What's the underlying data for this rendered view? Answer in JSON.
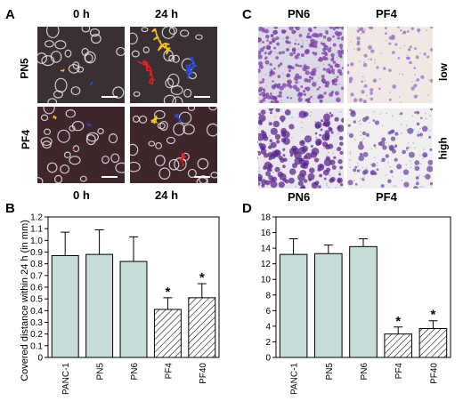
{
  "panels": {
    "A": {
      "letter": "A",
      "col_labels": [
        "0 h",
        "24 h"
      ],
      "row_labels": [
        "PN5",
        "PF4"
      ],
      "bottom_labels": [
        "0 h",
        "24 h"
      ]
    },
    "B": {
      "letter": "B",
      "ylabel": "Covered distance within 24 h (in mm)"
    },
    "C": {
      "letter": "C",
      "top_labels": [
        "PN6",
        "PF4"
      ],
      "bottom_labels": [
        "PN6",
        "PF4"
      ],
      "left_labels": [
        "low",
        "high"
      ],
      "right_labels": [
        "low",
        "high"
      ]
    },
    "D": {
      "letter": "D",
      "ylabel": ""
    }
  },
  "chart_data": [
    {
      "type": "bar",
      "panel": "B",
      "categories": [
        "PANC-1",
        "PN5",
        "PN6",
        "PF4",
        "PF40"
      ],
      "values": [
        0.87,
        0.88,
        0.82,
        0.41,
        0.51
      ],
      "errors": [
        0.2,
        0.21,
        0.21,
        0.1,
        0.12
      ],
      "significant": [
        false,
        false,
        false,
        true,
        true
      ],
      "hatched": [
        false,
        false,
        false,
        true,
        true
      ],
      "ylabel": "Covered distance within 24 h (in mm)",
      "ylim": [
        0,
        1.2
      ],
      "yticks": [
        "0",
        "0.1",
        "0.2",
        "0.3",
        "0.4",
        "0.5",
        "0.6",
        "0.7",
        "0.8",
        "0.9",
        "1.0",
        "1.1",
        "1.2"
      ],
      "sig_marker": "*",
      "bar_color": "#c5dcd8"
    },
    {
      "type": "bar",
      "panel": "D",
      "categories": [
        "PANC-1",
        "PN5",
        "PN6",
        "PF4",
        "PF40"
      ],
      "values": [
        13.2,
        13.3,
        14.2,
        3.0,
        3.7
      ],
      "errors": [
        2.0,
        1.1,
        1.0,
        0.9,
        1.0
      ],
      "significant": [
        false,
        false,
        false,
        true,
        true
      ],
      "hatched": [
        false,
        false,
        false,
        true,
        true
      ],
      "ylabel": "",
      "ylim": [
        0,
        18
      ],
      "yticks": [
        "0",
        "2",
        "4",
        "6",
        "8",
        "10",
        "12",
        "14",
        "16",
        "18"
      ],
      "sig_marker": "*",
      "bar_color": "#c5dcd8"
    }
  ]
}
